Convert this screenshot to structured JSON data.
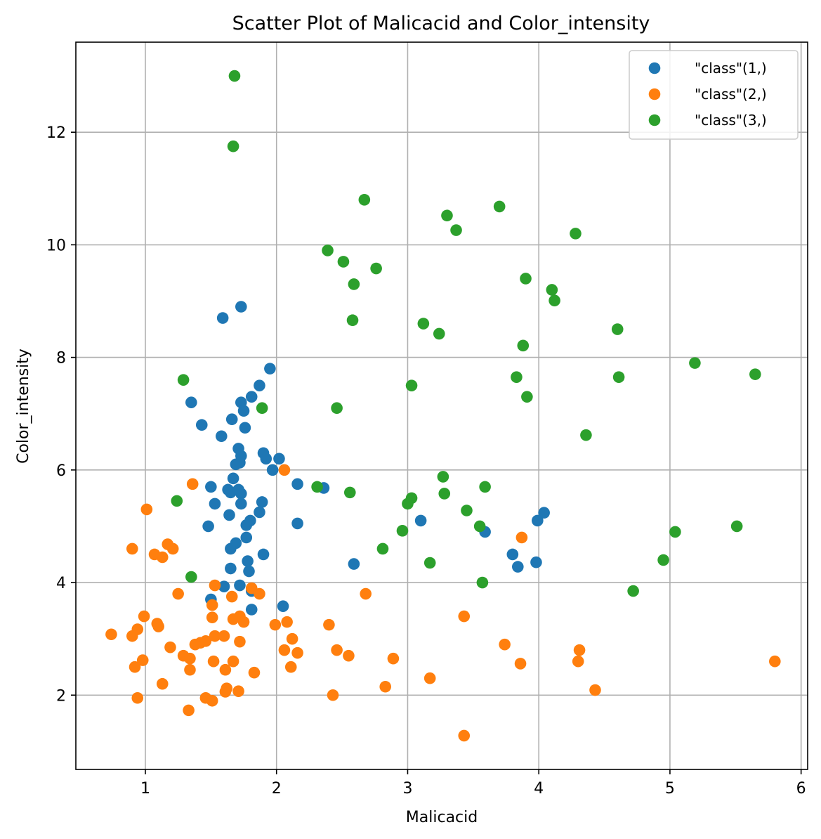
{
  "chart_data": {
    "type": "scatter",
    "title": "Scatter Plot of Malicacid and Color_intensity",
    "xlabel": "Malicacid",
    "ylabel": "Color_intensity",
    "xlim": [
      0.47,
      6.05
    ],
    "ylim": [
      0.68,
      13.6
    ],
    "xticks": [
      1,
      2,
      3,
      4,
      5,
      6
    ],
    "yticks": [
      2,
      4,
      6,
      8,
      10,
      12
    ],
    "grid": true,
    "legend_position": "top-right",
    "series": [
      {
        "name": "\"class\"(1,)",
        "color": "#1f77b4",
        "points": [
          [
            1.59,
            8.7
          ],
          [
            1.73,
            8.9
          ],
          [
            1.95,
            7.8
          ],
          [
            1.35,
            7.2
          ],
          [
            1.73,
            7.2
          ],
          [
            1.81,
            7.3
          ],
          [
            1.87,
            7.5
          ],
          [
            1.75,
            7.05
          ],
          [
            1.43,
            6.8
          ],
          [
            1.66,
            6.9
          ],
          [
            1.76,
            6.75
          ],
          [
            1.58,
            6.6
          ],
          [
            1.71,
            6.38
          ],
          [
            1.73,
            6.25
          ],
          [
            1.72,
            6.13
          ],
          [
            1.69,
            6.1
          ],
          [
            1.9,
            6.3
          ],
          [
            1.92,
            6.2
          ],
          [
            2.02,
            6.2
          ],
          [
            1.97,
            6.0
          ],
          [
            1.67,
            5.85
          ],
          [
            1.5,
            5.7
          ],
          [
            1.63,
            5.65
          ],
          [
            1.65,
            5.6
          ],
          [
            1.71,
            5.65
          ],
          [
            1.73,
            5.58
          ],
          [
            1.53,
            5.4
          ],
          [
            1.73,
            5.4
          ],
          [
            1.89,
            5.43
          ],
          [
            2.16,
            5.75
          ],
          [
            2.36,
            5.68
          ],
          [
            1.64,
            5.2
          ],
          [
            1.87,
            5.25
          ],
          [
            1.77,
            5.02
          ],
          [
            1.48,
            5.0
          ],
          [
            1.8,
            5.1
          ],
          [
            2.16,
            5.05
          ],
          [
            1.77,
            4.8
          ],
          [
            1.69,
            4.7
          ],
          [
            1.65,
            4.6
          ],
          [
            1.9,
            4.5
          ],
          [
            1.78,
            4.38
          ],
          [
            1.65,
            4.25
          ],
          [
            1.79,
            4.2
          ],
          [
            1.72,
            3.95
          ],
          [
            1.6,
            3.93
          ],
          [
            1.81,
            3.85
          ],
          [
            1.5,
            3.7
          ],
          [
            1.81,
            3.52
          ],
          [
            2.05,
            3.58
          ],
          [
            2.59,
            4.33
          ],
          [
            3.1,
            5.1
          ],
          [
            3.59,
            4.9
          ],
          [
            3.8,
            4.5
          ],
          [
            3.84,
            4.28
          ],
          [
            3.98,
            4.36
          ],
          [
            3.99,
            5.1
          ],
          [
            4.04,
            5.24
          ]
        ]
      },
      {
        "name": "\"class\"(2,)",
        "color": "#ff7f0e",
        "points": [
          [
            1.36,
            5.75
          ],
          [
            2.06,
            6.0
          ],
          [
            1.01,
            5.3
          ],
          [
            0.9,
            4.6
          ],
          [
            1.07,
            4.5
          ],
          [
            1.13,
            4.45
          ],
          [
            1.17,
            4.68
          ],
          [
            1.21,
            4.6
          ],
          [
            1.25,
            3.8
          ],
          [
            1.53,
            3.95
          ],
          [
            1.66,
            3.75
          ],
          [
            1.81,
            3.9
          ],
          [
            1.87,
            3.8
          ],
          [
            2.68,
            3.8
          ],
          [
            3.87,
            4.8
          ],
          [
            0.99,
            3.4
          ],
          [
            1.09,
            3.27
          ],
          [
            1.1,
            3.22
          ],
          [
            0.94,
            3.17
          ],
          [
            0.74,
            3.08
          ],
          [
            0.9,
            3.05
          ],
          [
            1.51,
            3.6
          ],
          [
            1.51,
            3.38
          ],
          [
            1.67,
            3.35
          ],
          [
            1.72,
            3.4
          ],
          [
            1.75,
            3.3
          ],
          [
            1.99,
            3.25
          ],
          [
            2.08,
            3.3
          ],
          [
            2.4,
            3.25
          ],
          [
            3.43,
            3.4
          ],
          [
            1.19,
            2.85
          ],
          [
            1.38,
            2.9
          ],
          [
            1.42,
            2.93
          ],
          [
            1.46,
            2.96
          ],
          [
            1.53,
            3.05
          ],
          [
            1.6,
            3.05
          ],
          [
            1.72,
            2.95
          ],
          [
            2.06,
            2.8
          ],
          [
            2.12,
            3.0
          ],
          [
            2.16,
            2.75
          ],
          [
            2.46,
            2.8
          ],
          [
            0.92,
            2.5
          ],
          [
            0.98,
            2.62
          ],
          [
            1.29,
            2.7
          ],
          [
            1.34,
            2.65
          ],
          [
            1.52,
            2.6
          ],
          [
            1.61,
            2.45
          ],
          [
            1.67,
            2.6
          ],
          [
            2.11,
            2.5
          ],
          [
            2.55,
            2.7
          ],
          [
            2.89,
            2.65
          ],
          [
            3.74,
            2.9
          ],
          [
            3.86,
            2.56
          ],
          [
            4.3,
            2.6
          ],
          [
            4.31,
            2.8
          ],
          [
            5.8,
            2.6
          ],
          [
            0.94,
            1.95
          ],
          [
            1.13,
            2.2
          ],
          [
            1.34,
            2.45
          ],
          [
            1.33,
            1.73
          ],
          [
            1.46,
            1.95
          ],
          [
            1.51,
            1.9
          ],
          [
            1.61,
            2.06
          ],
          [
            1.62,
            2.12
          ],
          [
            1.71,
            2.07
          ],
          [
            1.83,
            2.4
          ],
          [
            2.43,
            2.0
          ],
          [
            2.83,
            2.15
          ],
          [
            3.17,
            2.3
          ],
          [
            3.43,
            1.28
          ],
          [
            4.43,
            2.09
          ]
        ]
      },
      {
        "name": "\"class\"(3,)",
        "color": "#2ca02c",
        "points": [
          [
            1.68,
            13.0
          ],
          [
            1.67,
            11.75
          ],
          [
            2.67,
            10.8
          ],
          [
            3.7,
            10.68
          ],
          [
            3.3,
            10.52
          ],
          [
            3.37,
            10.26
          ],
          [
            4.28,
            10.2
          ],
          [
            2.39,
            9.9
          ],
          [
            2.51,
            9.7
          ],
          [
            2.76,
            9.58
          ],
          [
            3.9,
            9.4
          ],
          [
            2.59,
            9.3
          ],
          [
            4.1,
            9.2
          ],
          [
            4.12,
            9.01
          ],
          [
            2.58,
            8.66
          ],
          [
            3.12,
            8.6
          ],
          [
            3.24,
            8.42
          ],
          [
            4.6,
            8.5
          ],
          [
            3.88,
            8.21
          ],
          [
            5.19,
            7.9
          ],
          [
            5.65,
            7.7
          ],
          [
            1.29,
            7.6
          ],
          [
            3.03,
            7.5
          ],
          [
            3.83,
            7.65
          ],
          [
            4.61,
            7.65
          ],
          [
            3.91,
            7.3
          ],
          [
            1.89,
            7.1
          ],
          [
            2.46,
            7.1
          ],
          [
            4.36,
            6.62
          ],
          [
            2.31,
            5.7
          ],
          [
            2.56,
            5.6
          ],
          [
            3.59,
            5.7
          ],
          [
            3.27,
            5.88
          ],
          [
            3.28,
            5.58
          ],
          [
            3.03,
            5.5
          ],
          [
            3.0,
            5.4
          ],
          [
            1.24,
            5.45
          ],
          [
            3.45,
            5.28
          ],
          [
            3.55,
            5.0
          ],
          [
            2.96,
            4.92
          ],
          [
            5.04,
            4.9
          ],
          [
            5.51,
            5.0
          ],
          [
            2.81,
            4.6
          ],
          [
            3.17,
            4.35
          ],
          [
            4.95,
            4.4
          ],
          [
            1.35,
            4.1
          ],
          [
            3.57,
            4.0
          ],
          [
            4.72,
            3.85
          ]
        ]
      }
    ]
  }
}
